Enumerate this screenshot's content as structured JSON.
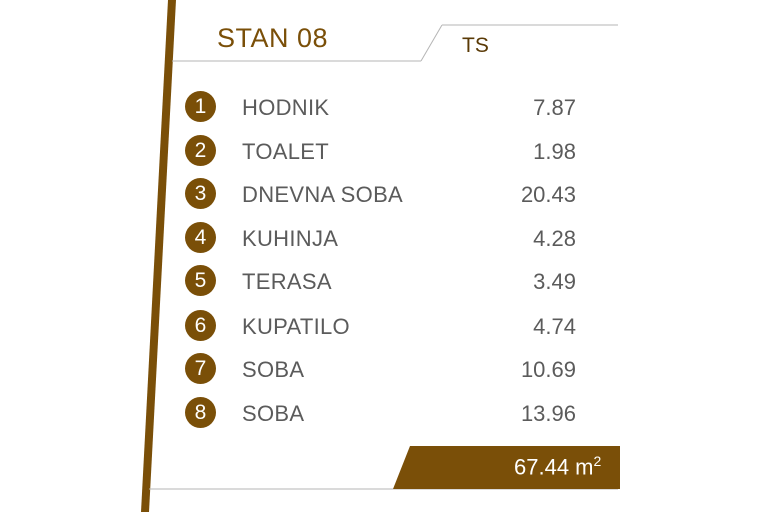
{
  "header": {
    "title": "STAN 08",
    "code": "TS"
  },
  "rooms": [
    {
      "num": "1",
      "name": "HODNIK",
      "area": "7.87"
    },
    {
      "num": "2",
      "name": "TOALET",
      "area": "1.98"
    },
    {
      "num": "3",
      "name": "DNEVNA SOBA",
      "area": "20.43"
    },
    {
      "num": "4",
      "name": "KUHINJA",
      "area": "4.28"
    },
    {
      "num": "5",
      "name": "TERASA",
      "area": "3.49"
    },
    {
      "num": "6",
      "name": "KUPATILO",
      "area": "4.74"
    },
    {
      "num": "7",
      "name": "SOBA",
      "area": "10.69"
    },
    {
      "num": "8",
      "name": "SOBA",
      "area": "13.96"
    }
  ],
  "total": {
    "value": "67.44 m",
    "unit_sup": "2"
  },
  "colors": {
    "accent": "#7a4f08",
    "text": "#5b5b5b"
  }
}
